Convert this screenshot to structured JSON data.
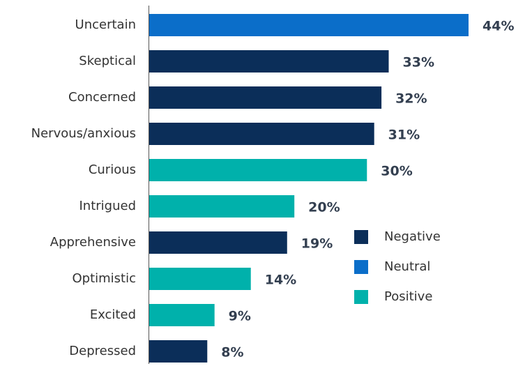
{
  "chart_data": {
    "type": "bar",
    "orientation": "horizontal",
    "categories": [
      "Uncertain",
      "Skeptical",
      "Concerned",
      "Nervous/anxious",
      "Curious",
      "Intrigued",
      "Apprehensive",
      "Optimistic",
      "Excited",
      "Depressed"
    ],
    "series": [
      {
        "name": "Negative",
        "color": "#0b2e59",
        "values": [
          null,
          33,
          32,
          31,
          null,
          null,
          19,
          null,
          null,
          8
        ],
        "value_labels": [
          null,
          "33%",
          "32%",
          "31%",
          null,
          null,
          "19%",
          null,
          null,
          "8%"
        ]
      },
      {
        "name": "Neutral",
        "color": "#0b6ec9",
        "values": [
          44,
          null,
          null,
          null,
          null,
          null,
          null,
          null,
          null,
          null
        ],
        "value_labels": [
          "44%",
          null,
          null,
          null,
          null,
          null,
          null,
          null,
          null,
          null
        ]
      },
      {
        "name": "Positive",
        "color": "#00b1ab",
        "values": [
          null,
          null,
          null,
          null,
          30,
          20,
          null,
          14,
          9,
          null
        ],
        "value_labels": [
          null,
          null,
          null,
          null,
          "30%",
          "20%",
          null,
          "14%",
          "9%",
          null
        ]
      }
    ],
    "legend": "right"
  }
}
